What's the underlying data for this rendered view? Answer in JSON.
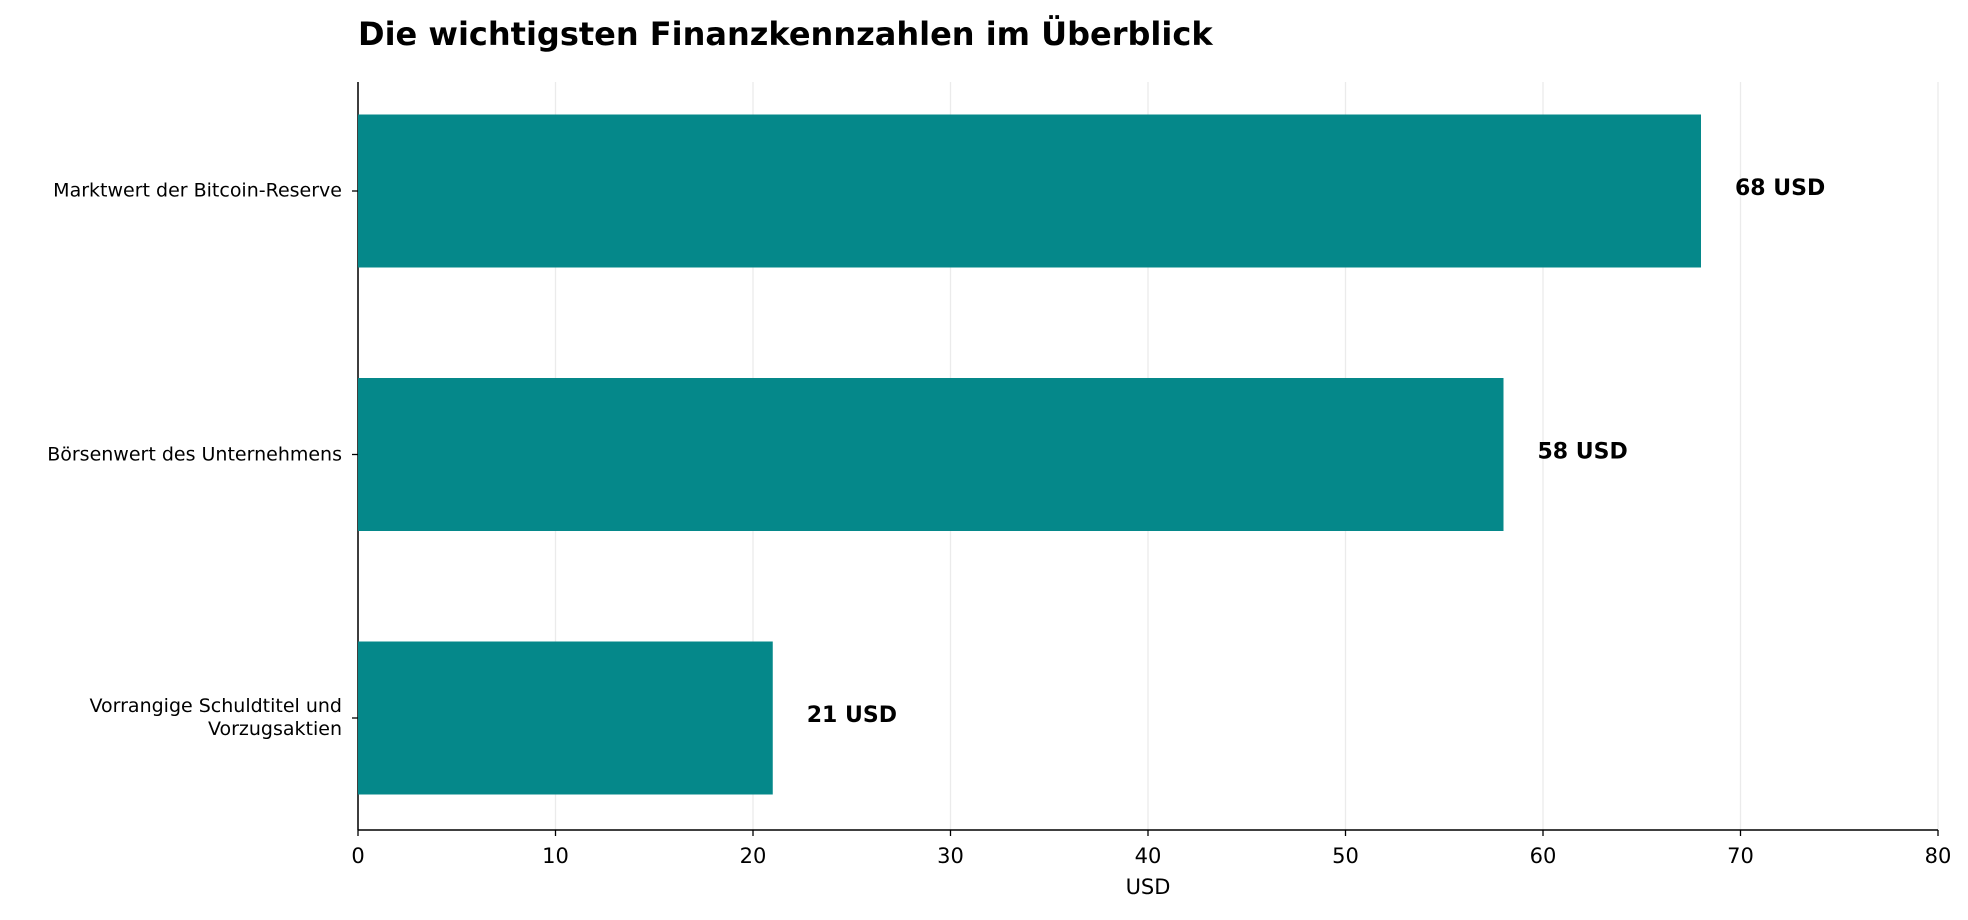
{
  "chart_data": {
    "type": "barh",
    "title": "Die wichtigsten Finanzkennzahlen im Überblick",
    "x_label": "USD",
    "categories": [
      "Marktwert der Bitcoin-Reserve",
      "Börsenwert des Unternehmens",
      "Vorrangige Schuldtitel und\nVorzugsaktien"
    ],
    "values": [
      68,
      58,
      21
    ],
    "value_labels": [
      "68 USD",
      "58 USD",
      "21 USD"
    ],
    "color": "#05888a",
    "xlim": [
      0,
      80
    ],
    "xticks": [
      0,
      10,
      20,
      30,
      40,
      50,
      60,
      70,
      80
    ],
    "grid": true
  }
}
